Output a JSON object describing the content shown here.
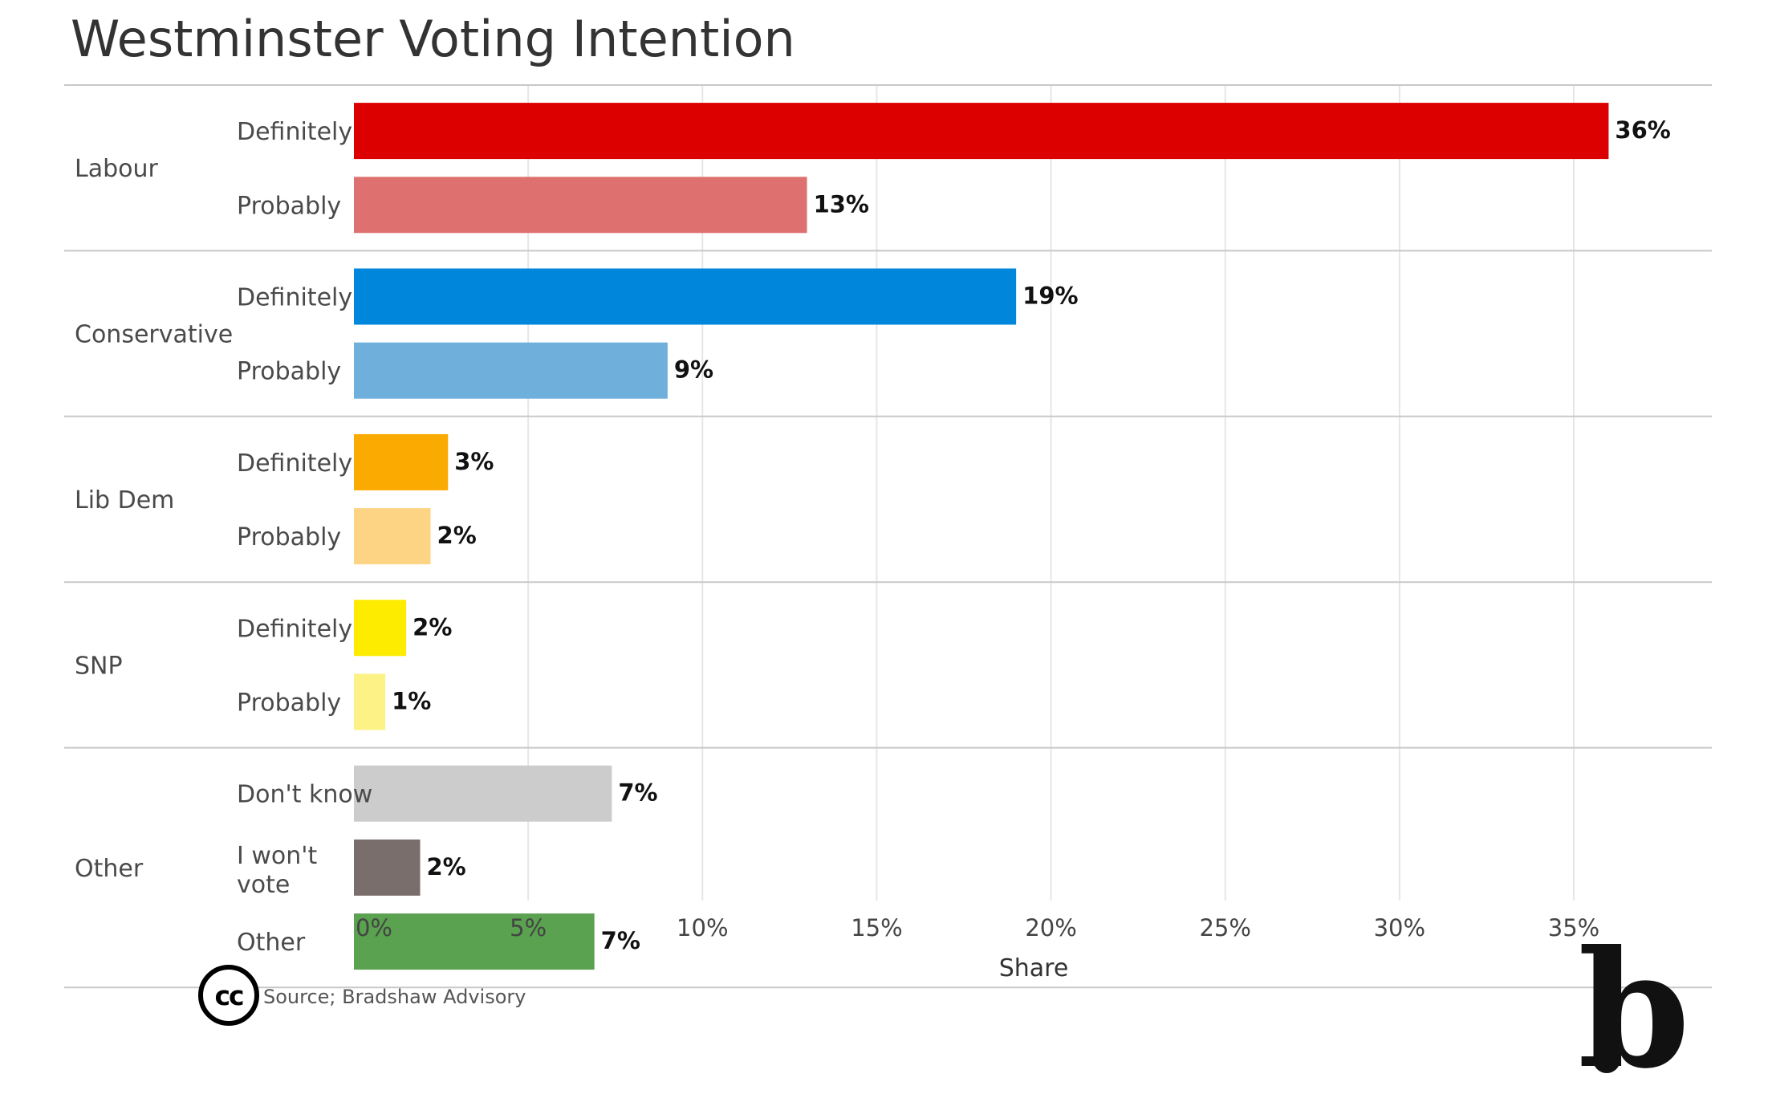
{
  "chart_data": {
    "type": "bar",
    "orientation": "horizontal",
    "title": "Westminster Voting Intention",
    "xlabel": "Share",
    "ylabel": "",
    "xlim": [
      0,
      38
    ],
    "x_ticks": [
      0,
      5,
      10,
      15,
      20,
      25,
      30,
      35
    ],
    "x_tick_labels": [
      "0%",
      "5%",
      "10%",
      "15%",
      "20%",
      "25%",
      "30%",
      "35%"
    ],
    "grid": "vertical",
    "legend": "none",
    "groups": [
      {
        "name": "Labour",
        "bars": [
          {
            "label": "Definitely",
            "value": 36,
            "display": "36%",
            "color": "#dd0000"
          },
          {
            "label": "Probably",
            "value": 13,
            "display": "13%",
            "color": "#de716f"
          }
        ]
      },
      {
        "name": "Conservative",
        "bars": [
          {
            "label": "Definitely",
            "value": 19,
            "display": "19%",
            "color": "#0087dc"
          },
          {
            "label": "Probably",
            "value": 9,
            "display": "9%",
            "color": "#6eb0db"
          }
        ]
      },
      {
        "name": "Lib Dem",
        "bars": [
          {
            "label": "Definitely",
            "value": 2.7,
            "display": "3%",
            "color": "#faaa00"
          },
          {
            "label": "Probably",
            "value": 2.2,
            "display": "2%",
            "color": "#fdd484"
          }
        ]
      },
      {
        "name": "SNP",
        "bars": [
          {
            "label": "Definitely",
            "value": 1.5,
            "display": "2%",
            "color": "#fdec00"
          },
          {
            "label": "Probably",
            "value": 0.9,
            "display": "1%",
            "color": "#fdf285"
          }
        ]
      },
      {
        "name": "Other",
        "bars": [
          {
            "label": "Don't know",
            "value": 7.4,
            "display": "7%",
            "color": "#cccccc"
          },
          {
            "label": "I won't vote",
            "value": 1.9,
            "display": "2%",
            "color": "#7a6e6d"
          },
          {
            "label": "Other",
            "value": 6.9,
            "display": "7%",
            "color": "#5aa150"
          }
        ]
      }
    ]
  },
  "source": "Source; Bradshaw Advisory",
  "license_icon": "cc-icon",
  "logo": "b",
  "colors": {
    "grid": "#e6e6e6",
    "divider": "#c8c8c8"
  }
}
